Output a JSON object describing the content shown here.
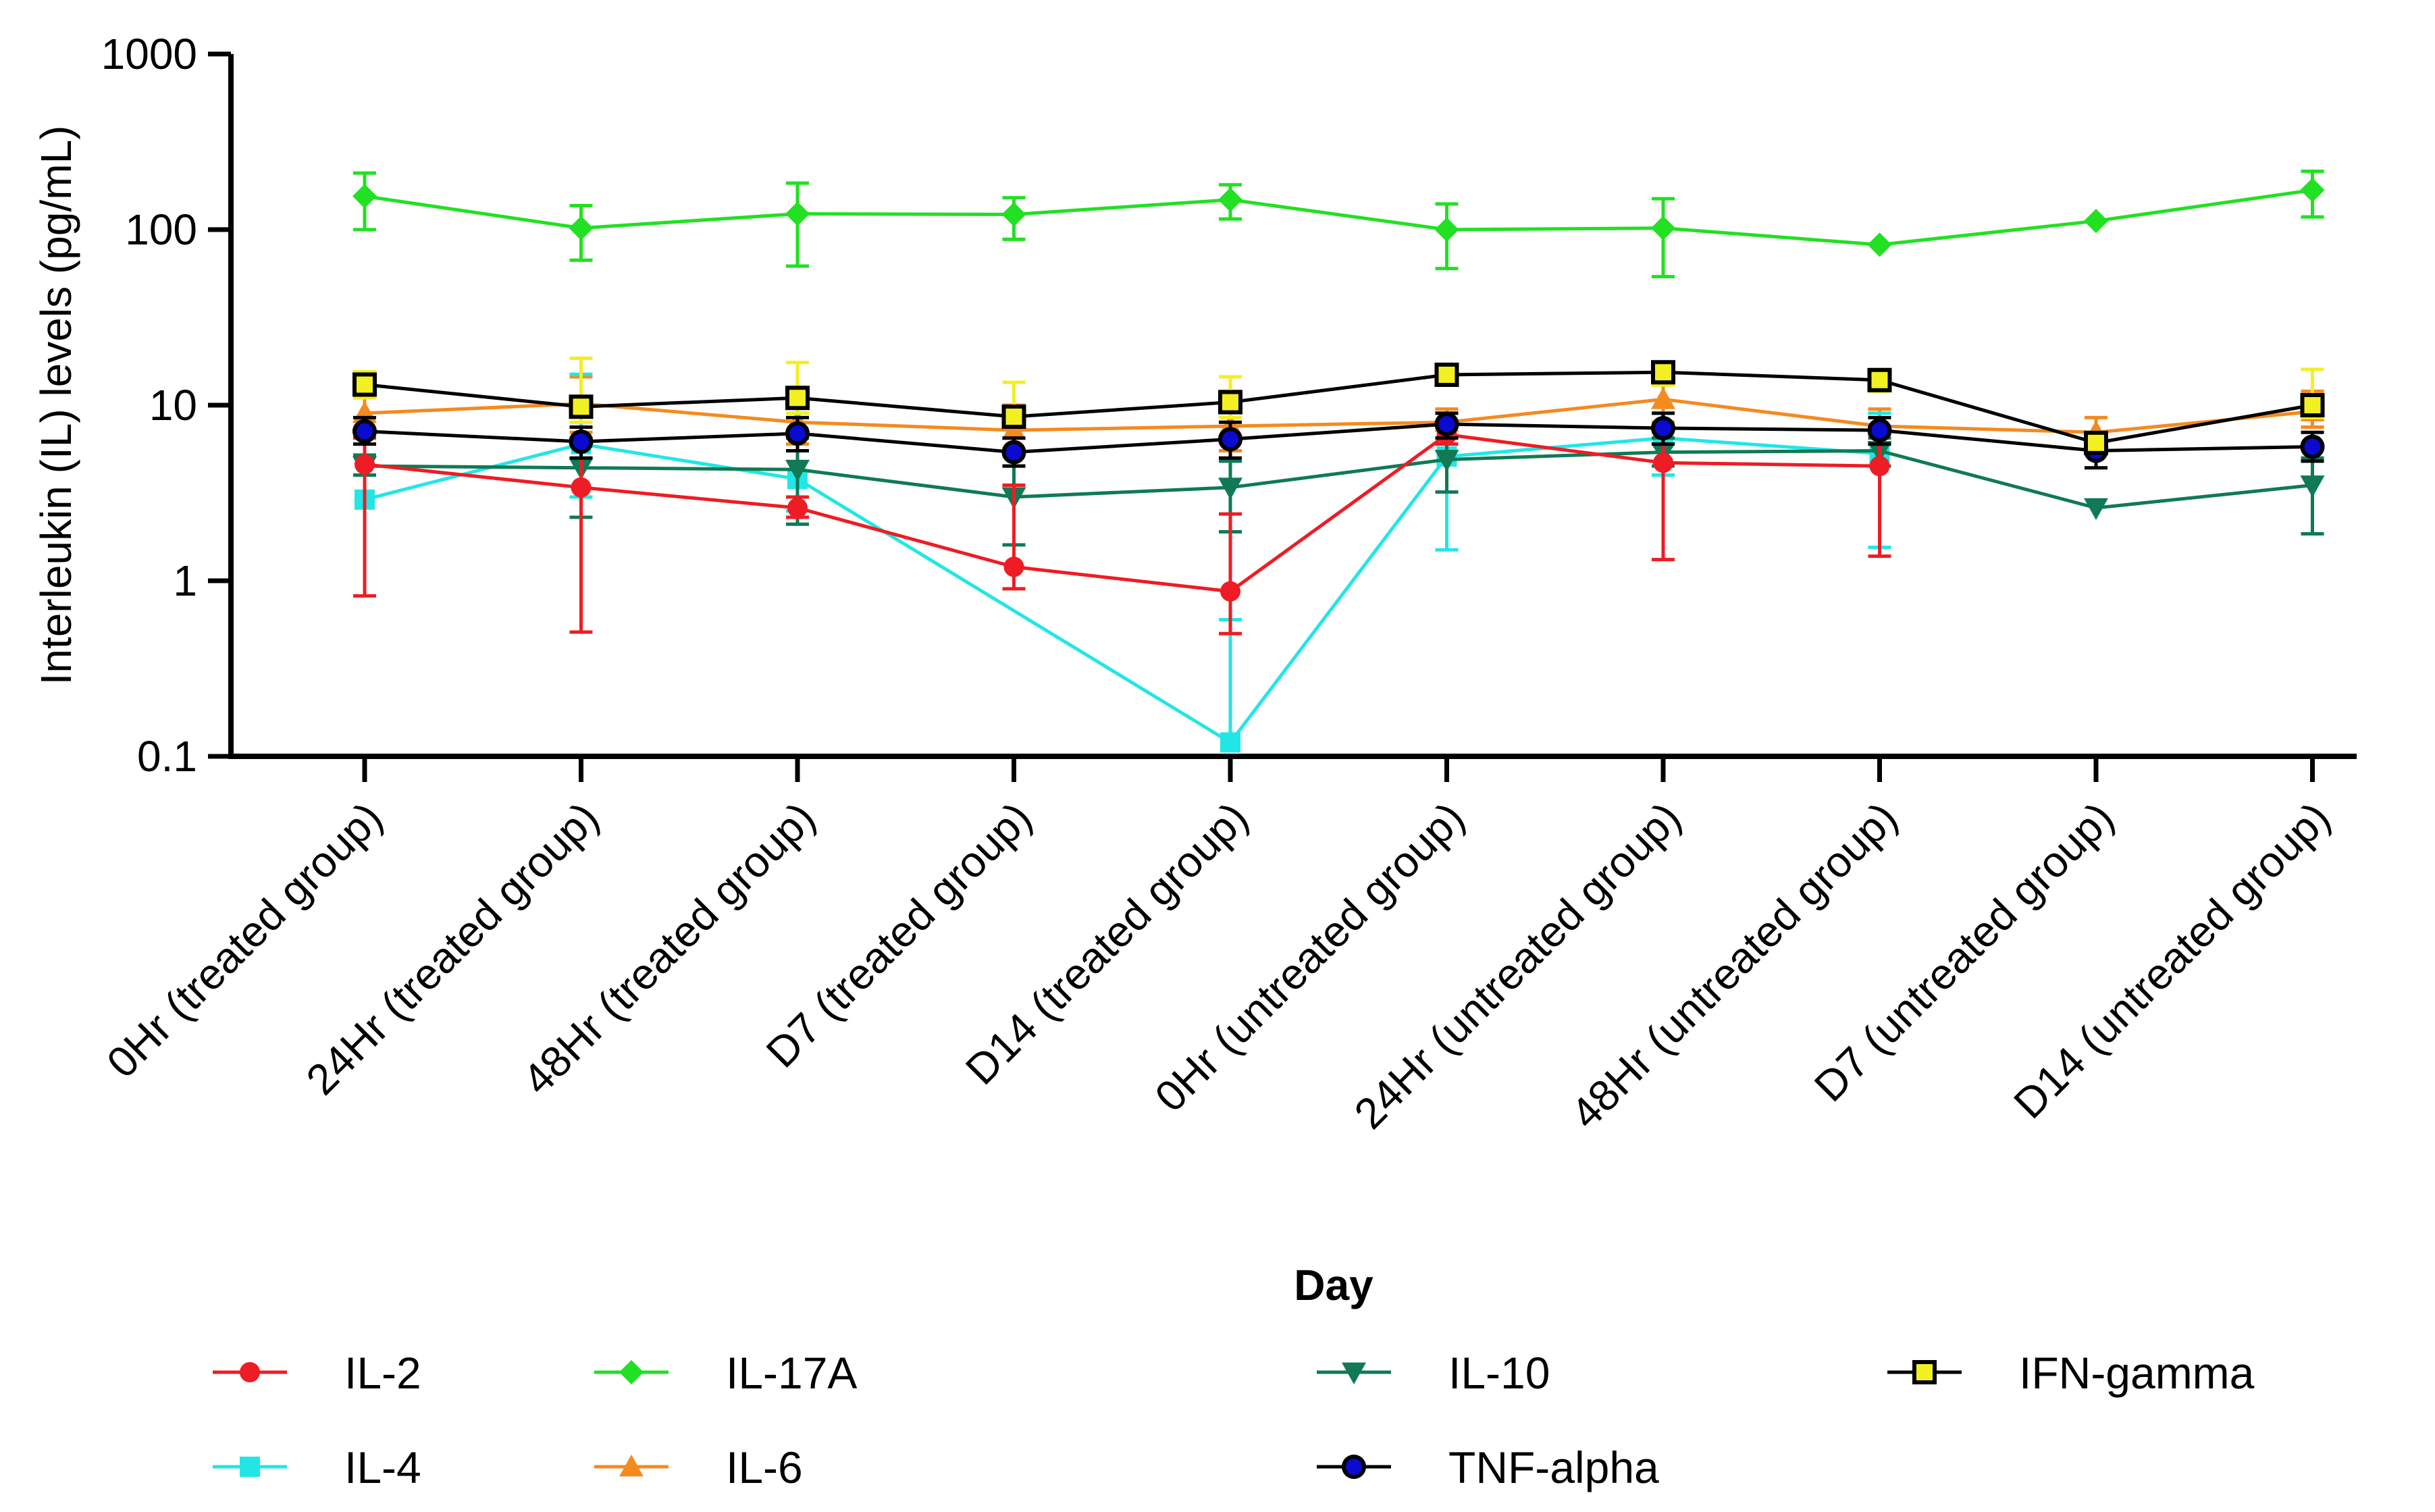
{
  "chart_data": {
    "type": "line",
    "yscale": "log",
    "ylabel": "Interleukin (IL) levels (pg/mL)",
    "xlabel": "Day",
    "ylim": [
      0.1,
      1000
    ],
    "yticks": [
      {
        "value": 0.1,
        "label": "0.1"
      },
      {
        "value": 1,
        "label": "1"
      },
      {
        "value": 10,
        "label": "10"
      },
      {
        "value": 100,
        "label": "100"
      },
      {
        "value": 1000,
        "label": "1000"
      }
    ],
    "categories": [
      "0Hr (treated group)",
      "24Hr (treated group)",
      "48Hr (treated group)",
      "D7 (treated group)",
      "D14 (treated group)",
      "0Hr (untreated group)",
      "24Hr (untreated group)",
      "48Hr (untreated group)",
      "D7 (untreated group)",
      "D14 (untreated group)"
    ],
    "series": [
      {
        "name": "IL-17A",
        "color": "#22e022",
        "marker": "diamond",
        "marker_color": "#22e022",
        "values": [
          155,
          102,
          123,
          122,
          148,
          100,
          102,
          82,
          112,
          168
        ],
        "err_low": [
          100,
          67,
          62,
          88,
          115,
          60,
          54,
          null,
          null,
          118
        ],
        "err_high": [
          210,
          137,
          184,
          152,
          180,
          140,
          150,
          null,
          null,
          215
        ]
      },
      {
        "name": "IL-6",
        "color": "#f58a1f",
        "marker": "triangle-up",
        "marker_color": "#f58a1f",
        "values": [
          9.0,
          10.2,
          8.0,
          7.2,
          7.6,
          8.0,
          10.8,
          7.6,
          7.0,
          9.2
        ],
        "err_low": [
          7.0,
          7.0,
          6.0,
          5.5,
          5.5,
          6.5,
          8.0,
          6.0,
          5.5,
          7.5
        ],
        "err_high": [
          11.5,
          14.5,
          12.0,
          10.0,
          12.0,
          9.5,
          14.0,
          9.5,
          8.5,
          12.0
        ]
      },
      {
        "name": "IL-4",
        "color": "#22e6e6",
        "marker": "square",
        "marker_color": "#22e6e6",
        "values": [
          2.9,
          6.0,
          3.8,
          null,
          0.12,
          5.1,
          6.5,
          5.3,
          null,
          null
        ],
        "err_low": [
          null,
          3.0,
          2.5,
          null,
          null,
          1.5,
          4.0,
          1.55,
          null,
          null
        ],
        "err_high": [
          null,
          15.0,
          9.0,
          null,
          0.6,
          9.0,
          9.0,
          9.0,
          null,
          null
        ]
      },
      {
        "name": "IL-10",
        "color": "#0f7a54",
        "marker": "triangle-down",
        "marker_color": "#0f7a54",
        "values": [
          4.5,
          4.4,
          4.3,
          3.0,
          3.4,
          4.9,
          5.4,
          5.5,
          2.6,
          3.5
        ],
        "err_low": [
          4.0,
          2.3,
          2.1,
          1.6,
          1.9,
          3.2,
          4.5,
          4.5,
          null,
          1.85
        ],
        "err_high": [
          5.2,
          6.0,
          6.5,
          4.5,
          4.8,
          6.5,
          6.5,
          6.5,
          null,
          5.0
        ]
      },
      {
        "name": "IL-2",
        "color": "#ee1c24",
        "marker": "circle",
        "marker_color": "#ee1c24",
        "values": [
          4.6,
          3.4,
          2.6,
          1.2,
          0.87,
          6.8,
          4.7,
          4.5,
          null,
          null
        ],
        "err_low": [
          0.82,
          0.51,
          2.3,
          0.9,
          0.5,
          6.0,
          1.32,
          1.38,
          null,
          null
        ],
        "err_high": [
          6.5,
          6.5,
          3.0,
          3.5,
          2.4,
          7.5,
          7.5,
          7.5,
          null,
          null
        ]
      },
      {
        "name": "TNF-alpha",
        "color": "#000000",
        "marker": "circle",
        "marker_color": "#0a0ad0",
        "values": [
          7.1,
          6.2,
          6.9,
          5.4,
          6.4,
          7.8,
          7.4,
          7.2,
          5.5,
          5.8
        ],
        "err_low": [
          6.0,
          5.0,
          5.5,
          4.5,
          5.0,
          6.5,
          6.0,
          6.0,
          4.4,
          4.8
        ],
        "err_high": [
          8.5,
          7.5,
          8.5,
          6.5,
          8.0,
          9.0,
          9.0,
          8.5,
          6.5,
          7.0
        ]
      },
      {
        "name": "IFN-gamma",
        "color": "#000000",
        "marker": "square",
        "marker_color": "#f2ef22",
        "values": [
          13.1,
          9.8,
          11.0,
          8.6,
          10.4,
          14.9,
          15.4,
          13.9,
          6.1,
          10.0
        ],
        "err_low": [
          11.0,
          8.0,
          9.0,
          7.5,
          8.5,
          13.0,
          13.0,
          12.0,
          5.5,
          8.5
        ],
        "err_high": [
          15.5,
          18.5,
          17.5,
          13.5,
          14.5,
          17.0,
          17.5,
          16.0,
          7.0,
          16.0
        ]
      }
    ],
    "legend": [
      {
        "series": "IL-2"
      },
      {
        "series": "IL-17A"
      },
      {
        "series": "IL-10"
      },
      {
        "series": "IFN-gamma"
      },
      {
        "series": "IL-4"
      },
      {
        "series": "IL-6"
      },
      {
        "series": "TNF-alpha"
      }
    ]
  }
}
